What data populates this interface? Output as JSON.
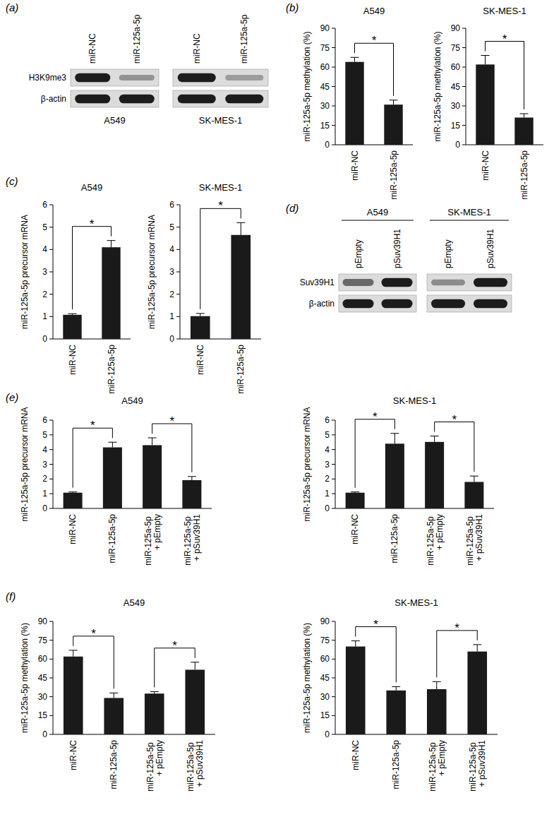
{
  "chart_data": [
    {
      "type": "blot",
      "annotations": [
        "(a)"
      ],
      "title": "A549",
      "categories": [
        "miR-NC",
        "miR-125a-5p"
      ],
      "series": [
        {
          "name": "H3K9me3",
          "values": [
            1,
            0.3
          ]
        },
        {
          "name": "β-actin",
          "values": [
            1,
            1
          ]
        }
      ]
    },
    {
      "type": "blot",
      "title": "SK-MES-1",
      "categories": [
        "miR-NC",
        "miR-125a-5p"
      ],
      "series": [
        {
          "values": [
            1,
            0.25
          ]
        },
        {
          "values": [
            1,
            1
          ]
        }
      ]
    },
    {
      "type": "bar",
      "annotations": [
        "(b)"
      ],
      "title": "A549",
      "y_label": "miR-125a-5p methylation (%)",
      "categories": [
        "miR-NC",
        "miR-125a-5p"
      ],
      "values": [
        64,
        31
      ],
      "errors": [
        3.5,
        3.5
      ],
      "color": "#1a1a1a",
      "ylim": [
        0,
        90
      ],
      "yticks": [
        0,
        15,
        30,
        45,
        60,
        75,
        90
      ],
      "significance": [
        {
          "between": [
            "miR-NC",
            "miR-125a-5p"
          ],
          "label": "*"
        }
      ]
    },
    {
      "type": "bar",
      "title": "SK-MES-1",
      "y_label": "miR-125a-5p methylation (%)",
      "categories": [
        "miR-NC",
        "miR-125a-5p"
      ],
      "values": [
        62,
        21
      ],
      "errors": [
        7,
        3
      ],
      "color": "#1a1a1a",
      "ylim": [
        0,
        90
      ],
      "yticks": [
        0,
        15,
        30,
        45,
        60,
        75,
        90
      ],
      "significance": [
        {
          "between": [
            "miR-NC",
            "miR-125a-5p"
          ],
          "label": "*"
        }
      ]
    },
    {
      "type": "bar",
      "annotations": [
        "(c)"
      ],
      "title": "A549",
      "y_label": "miR-125a-5p precursor mRNA",
      "categories": [
        "miR-NC",
        "miR-125a-5p"
      ],
      "values": [
        1.08,
        4.1
      ],
      "errors": [
        0.05,
        0.3
      ],
      "color": "#1a1a1a",
      "ylim": [
        0,
        6
      ],
      "yticks": [
        0,
        1,
        2,
        3,
        4,
        5,
        6
      ],
      "significance": [
        {
          "between": [
            "miR-NC",
            "miR-125a-5p"
          ],
          "label": "*"
        }
      ]
    },
    {
      "type": "bar",
      "title": "SK-MES-1",
      "y_label": "miR-125a-5p precursor mRNA",
      "categories": [
        "miR-NC",
        "miR-125a-5p"
      ],
      "values": [
        1.02,
        4.65
      ],
      "errors": [
        0.12,
        0.55
      ],
      "color": "#1a1a1a",
      "ylim": [
        0,
        6
      ],
      "yticks": [
        0,
        1,
        2,
        3,
        4,
        5,
        6
      ],
      "significance": [
        {
          "between": [
            "miR-NC",
            "miR-125a-5p"
          ],
          "label": "*"
        }
      ]
    },
    {
      "type": "blot",
      "annotations": [
        "(d)"
      ],
      "title": "A549",
      "categories": [
        "pEmpty",
        "pSuv39H1"
      ],
      "series": [
        {
          "name": "Suv39H1",
          "values": [
            0.55,
            1
          ]
        },
        {
          "name": "β-actin",
          "values": [
            1,
            1
          ]
        }
      ]
    },
    {
      "type": "blot",
      "title": "SK-MES-1",
      "categories": [
        "pEmpty",
        "pSuv39H1"
      ],
      "series": [
        {
          "values": [
            0.35,
            1
          ]
        },
        {
          "values": [
            1,
            1
          ]
        }
      ]
    },
    {
      "type": "bar",
      "annotations": [
        "(e)"
      ],
      "title": "A549",
      "y_label": "miR-125a-5p precursor mRNA",
      "categories": [
        "miR-NC",
        "miR-125a-5p",
        "miR-125a-5p + pEmpty",
        "miR-125a-5p + pSuv39H1"
      ],
      "values": [
        1.07,
        4.15,
        4.3,
        1.92
      ],
      "errors": [
        0.05,
        0.35,
        0.5,
        0.25
      ],
      "color": "#1a1a1a",
      "ylim": [
        0,
        6
      ],
      "yticks": [
        0,
        1,
        2,
        3,
        4,
        5,
        6
      ],
      "significance": [
        {
          "between": [
            "miR-NC",
            "miR-125a-5p"
          ],
          "label": "*"
        },
        {
          "between": [
            "miR-125a-5p + pEmpty",
            "miR-125a-5p + pSuv39H1"
          ],
          "label": "*"
        }
      ]
    },
    {
      "type": "bar",
      "title": "SK-MES-1",
      "y_label": "miR-125a-5p precursor mRNA",
      "categories": [
        "miR-NC",
        "miR-125a-5p",
        "miR-125a-5p + pEmpty",
        "miR-125a-5p + pSuv39H1"
      ],
      "values": [
        1.07,
        4.4,
        4.52,
        1.8
      ],
      "errors": [
        0.05,
        0.7,
        0.4,
        0.4
      ],
      "color": "#1a1a1a",
      "ylim": [
        0,
        6
      ],
      "yticks": [
        0,
        1,
        2,
        3,
        4,
        5,
        6
      ],
      "significance": [
        {
          "between": [
            "miR-NC",
            "miR-125a-5p"
          ],
          "label": "*"
        },
        {
          "between": [
            "miR-125a-5p + pEmpty",
            "miR-125a-5p + pSuv39H1"
          ],
          "label": "*"
        }
      ]
    },
    {
      "type": "bar",
      "annotations": [
        "(f)"
      ],
      "title": "A549",
      "y_label": "miR-125a-5p methylation (%)",
      "categories": [
        "miR-NC",
        "miR-125a-5p",
        "miR-125a-5p + pEmpty",
        "miR-125a-5p + pSuv39H1"
      ],
      "values": [
        62,
        29,
        32.5,
        51.5
      ],
      "errors": [
        5,
        4,
        1.5,
        6
      ],
      "color": "#1a1a1a",
      "ylim": [
        0,
        90
      ],
      "yticks": [
        0,
        15,
        30,
        45,
        60,
        75,
        90
      ],
      "significance": [
        {
          "between": [
            "miR-NC",
            "miR-125a-5p"
          ],
          "label": "*"
        },
        {
          "between": [
            "miR-125a-5p + pEmpty",
            "miR-125a-5p + pSuv39H1"
          ],
          "label": "*"
        }
      ]
    },
    {
      "type": "bar",
      "title": "SK-MES-1",
      "y_label": "miR-125a-5p methylation (%)",
      "categories": [
        "miR-NC",
        "miR-125a-5p",
        "miR-125a-5p + pEmpty",
        "miR-125a-5p + pSuv39H1"
      ],
      "values": [
        70,
        35,
        36,
        66
      ],
      "errors": [
        4.5,
        3,
        6,
        5.5
      ],
      "color": "#1a1a1a",
      "ylim": [
        0,
        90
      ],
      "yticks": [
        0,
        15,
        30,
        45,
        60,
        75,
        90
      ],
      "significance": [
        {
          "between": [
            "miR-NC",
            "miR-125a-5p"
          ],
          "label": "*"
        },
        {
          "between": [
            "miR-125a-5p + pEmpty",
            "miR-125a-5p + pSuv39H1"
          ],
          "label": "*"
        }
      ]
    }
  ]
}
